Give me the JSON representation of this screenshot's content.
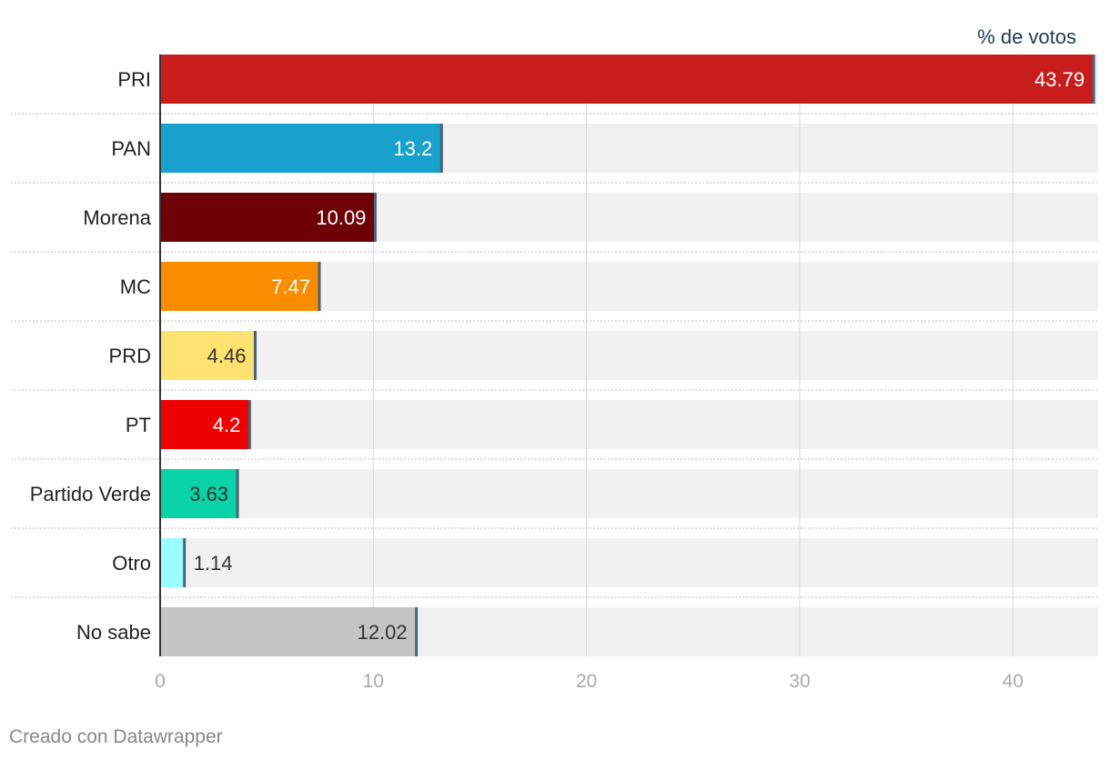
{
  "chart_data": {
    "type": "bar",
    "orientation": "horizontal",
    "unit_label": "% de votos",
    "categories": [
      "PRI",
      "PAN",
      "Morena",
      "MC",
      "PRD",
      "PT",
      "Partido Verde",
      "Otro",
      "No sabe"
    ],
    "values": [
      43.79,
      13.2,
      10.09,
      7.47,
      4.46,
      4.2,
      3.63,
      1.14,
      12.02
    ],
    "value_labels": [
      "43.79",
      "13.2",
      "10.09",
      "7.47",
      "4.46",
      "4.2",
      "3.63",
      "1.14",
      "12.02"
    ],
    "colors": [
      "#c71e1d",
      "#18a1cd",
      "#6e0007",
      "#fa8c00",
      "#ffe270",
      "#ee0000",
      "#09d3a7",
      "#99ffff",
      "#c4c4c4"
    ],
    "label_colors": [
      "#ffffff",
      "#ffffff",
      "#ffffff",
      "#ffffff",
      "#333333",
      "#ffffff",
      "#333333",
      "#333333",
      "#333333"
    ],
    "labels_outside": [
      false,
      false,
      false,
      false,
      false,
      false,
      false,
      true,
      false
    ],
    "xlim": [
      0,
      44
    ],
    "xticks": [
      0,
      10,
      20,
      30,
      40
    ],
    "xtick_labels": [
      "0",
      "10",
      "20",
      "30",
      "40"
    ],
    "grid": true,
    "background_track_color": "#f1f1f1"
  },
  "footer": {
    "credit": "Creado con Datawrapper"
  }
}
